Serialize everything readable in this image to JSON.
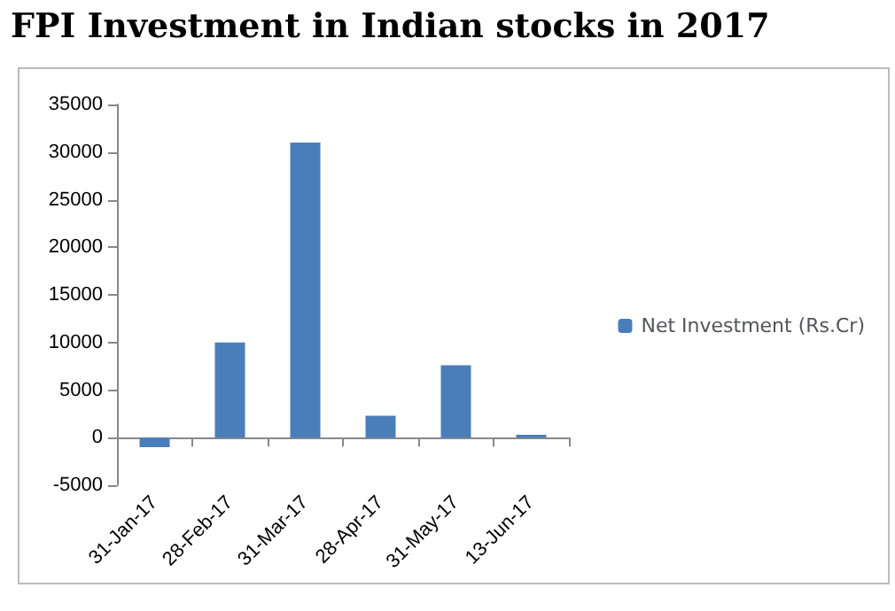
{
  "chart_data": {
    "type": "bar",
    "title": "FPI Investment in Indian stocks in 2017",
    "categories": [
      "31-Jan-17",
      "28-Feb-17",
      "31-Mar-17",
      "28-Apr-17",
      "31-May-17",
      "13-Jun-17"
    ],
    "series": [
      {
        "name": "Net Investment (Rs.Cr)",
        "color": "#4a7ebb",
        "values": [
          -1000,
          10000,
          31000,
          2300,
          7600,
          300
        ]
      }
    ],
    "ylim": [
      -5000,
      35000
    ],
    "yticks": [
      -5000,
      0,
      5000,
      10000,
      15000,
      20000,
      25000,
      30000,
      35000
    ],
    "legend": "right"
  }
}
